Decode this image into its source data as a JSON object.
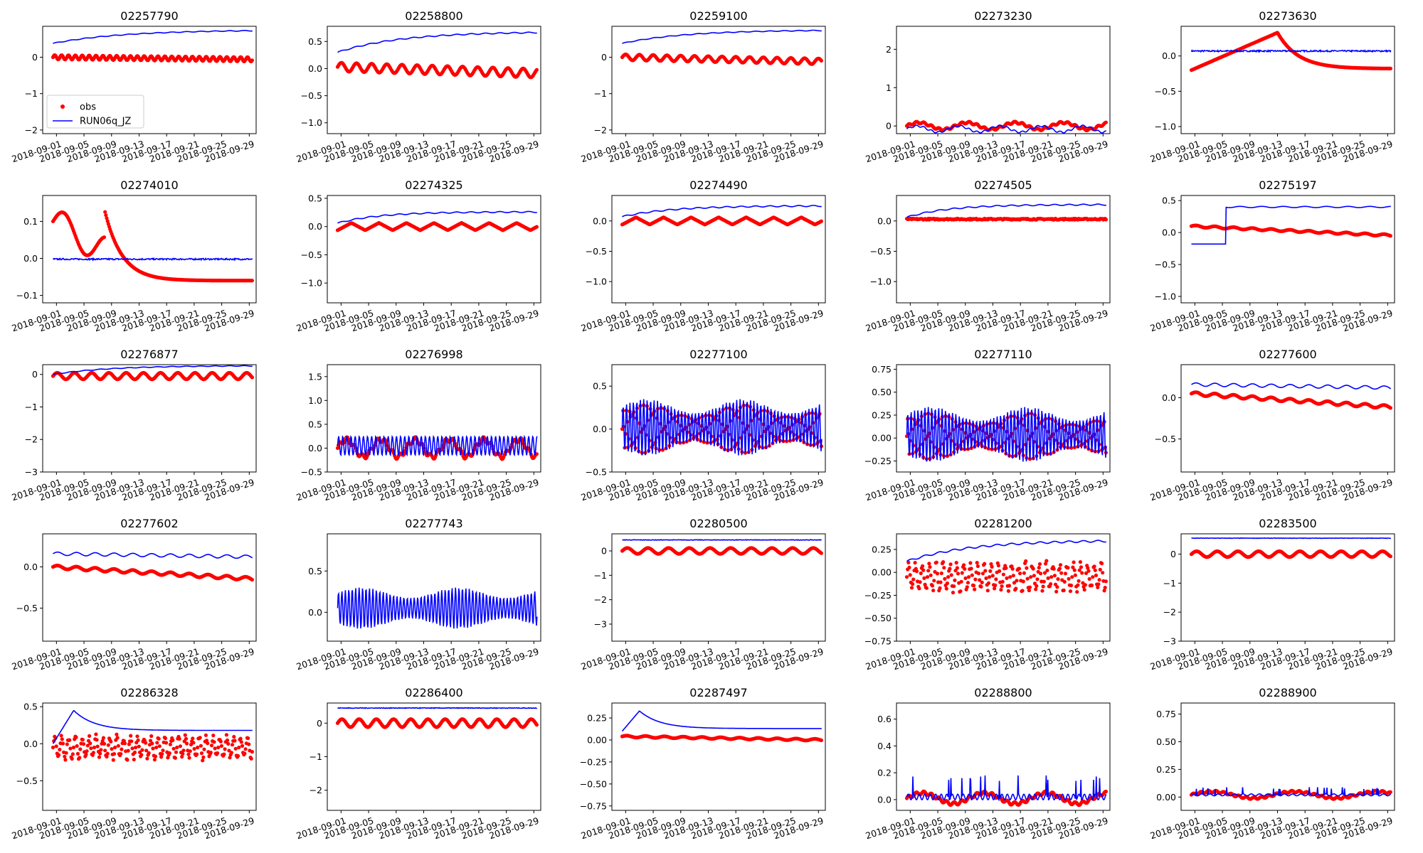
{
  "chart_data": {
    "type": "line",
    "layout": "5x5 grid of small-multiple time-series panels",
    "xlabel": "",
    "ylabel": "",
    "x_range": [
      "2018-08-30",
      "2018-09-30"
    ],
    "x_ticks": [
      "2018-09-01",
      "2018-09-05",
      "2018-09-09",
      "2018-09-13",
      "2018-09-17",
      "2018-09-21",
      "2018-09-25",
      "2018-09-29"
    ],
    "legend": {
      "placement": "lower-left of first panel",
      "entries": [
        {
          "name": "obs",
          "style": "red dots",
          "color": "#ff0000"
        },
        {
          "name": "RUN06q_JZ",
          "style": "blue line",
          "color": "#0000ff"
        }
      ]
    },
    "panels": [
      {
        "title": "02257790",
        "ylim": [
          -2.1,
          0.85
        ],
        "yticks": [
          "0",
          "−1",
          "−2"
        ],
        "ytick_values": [
          0,
          -1,
          -2
        ],
        "obs": {
          "kind": "osc",
          "base": 0.0,
          "amp": 0.06,
          "period": 1.0,
          "trend": -0.002
        },
        "model": {
          "kind": "rise",
          "start": 0.38,
          "end": 0.75,
          "tau": 10
        }
      },
      {
        "title": "02258800",
        "ylim": [
          -1.2,
          0.78
        ],
        "yticks": [
          "0.5",
          "0.0",
          "−0.5",
          "−1.0"
        ],
        "ytick_values": [
          0.5,
          0,
          -0.5,
          -1.0
        ],
        "obs": {
          "kind": "osc",
          "base": 0.03,
          "amp": 0.08,
          "period": 2.2,
          "trend": -0.004
        },
        "model": {
          "kind": "rise",
          "start": 0.3,
          "end": 0.68,
          "tau": 9
        }
      },
      {
        "title": "02259100",
        "ylim": [
          -2.1,
          0.85
        ],
        "yticks": [
          "0",
          "−1",
          "−2"
        ],
        "ytick_values": [
          0,
          -1,
          -2
        ],
        "obs": {
          "kind": "osc",
          "base": 0.0,
          "amp": 0.08,
          "period": 2.0,
          "trend": -0.004
        },
        "model": {
          "kind": "rise",
          "start": 0.38,
          "end": 0.75,
          "tau": 9
        }
      },
      {
        "title": "02273230",
        "ylim": [
          -0.2,
          2.6
        ],
        "yticks": [
          "2",
          "1",
          "0"
        ],
        "ytick_values": [
          2,
          1,
          0
        ],
        "obs": {
          "kind": "wave",
          "base": 0.0,
          "amp": 0.09,
          "period": 7.0,
          "trend": 0.0
        },
        "model": {
          "kind": "wave",
          "base": -0.08,
          "amp": 0.08,
          "period": 6.0,
          "trend": 0.0
        }
      },
      {
        "title": "02273630",
        "ylim": [
          -1.1,
          0.42
        ],
        "yticks": [
          "0.0",
          "−0.5",
          "−1.0"
        ],
        "ytick_values": [
          0,
          -0.5,
          -1.0
        ],
        "obs": {
          "kind": "peak",
          "base": -0.2,
          "peak": 0.33,
          "tpeak": 12.5,
          "end": -0.18
        },
        "model": {
          "kind": "flat",
          "base": 0.07,
          "noise": 0.02
        }
      },
      {
        "title": "02274010",
        "ylim": [
          -0.12,
          0.17
        ],
        "yticks": [
          "0.1",
          "0.0",
          "−0.1"
        ],
        "ytick_values": [
          0.1,
          0,
          -0.1
        ],
        "obs": {
          "kind": "recess",
          "base": 0.08,
          "peak": 0.13,
          "tpeak": 7.5,
          "end": -0.06
        },
        "model": {
          "kind": "flat",
          "base": -0.002,
          "noise": 0.004
        }
      },
      {
        "title": "02274325",
        "ylim": [
          -1.35,
          0.55
        ],
        "yticks": [
          "0.5",
          "0.0",
          "−0.5",
          "−1.0"
        ],
        "ytick_values": [
          0.5,
          0,
          -0.5,
          -1.0
        ],
        "obs": {
          "kind": "saw",
          "base": 0.0,
          "amp": 0.13,
          "period": 4.0,
          "trend": 0.0
        },
        "model": {
          "kind": "rise",
          "start": 0.06,
          "end": 0.26,
          "tau": 6
        }
      },
      {
        "title": "02274490",
        "ylim": [
          -1.35,
          0.42
        ],
        "yticks": [
          "0.0",
          "−0.5",
          "−1.0"
        ],
        "ytick_values": [
          0,
          -0.5,
          -1.0
        ],
        "obs": {
          "kind": "saw",
          "base": 0.0,
          "amp": 0.12,
          "period": 4.0,
          "trend": 0.0
        },
        "model": {
          "kind": "rise",
          "start": 0.07,
          "end": 0.25,
          "tau": 7
        }
      },
      {
        "title": "02274505",
        "ylim": [
          -1.35,
          0.42
        ],
        "yticks": [
          "0.0",
          "−0.5",
          "−1.0"
        ],
        "ytick_values": [
          0,
          -0.5,
          -1.0
        ],
        "obs": {
          "kind": "flat",
          "base": 0.03,
          "noise": 0.02
        },
        "model": {
          "kind": "rise",
          "start": 0.06,
          "end": 0.27,
          "tau": 6
        }
      },
      {
        "title": "02275197",
        "ylim": [
          -1.1,
          0.58
        ],
        "yticks": [
          "0.5",
          "0.0",
          "−0.5",
          "−1.0"
        ],
        "ytick_values": [
          0.5,
          0,
          -0.5,
          -1.0
        ],
        "obs": {
          "kind": "decay",
          "base": 0.1,
          "end": -0.05,
          "noise": 0.015
        },
        "model": {
          "kind": "step",
          "before": -0.18,
          "after": 0.4,
          "tstep": 5
        }
      },
      {
        "title": "02276877",
        "ylim": [
          -3.0,
          0.3
        ],
        "yticks": [
          "0",
          "−1",
          "−2",
          "−3"
        ],
        "ytick_values": [
          0,
          -1,
          -2,
          -3
        ],
        "obs": {
          "kind": "osc",
          "base": -0.05,
          "amp": 0.1,
          "period": 2.5,
          "trend": 0.0
        },
        "model": {
          "kind": "rise",
          "start": 0.0,
          "end": 0.27,
          "tau": 8
        }
      },
      {
        "title": "02276998",
        "ylim": [
          -0.5,
          1.75
        ],
        "yticks": [
          "1.5",
          "1.0",
          "0.5",
          "0.0",
          "−0.5"
        ],
        "ytick_values": [
          1.5,
          1.0,
          0.5,
          0,
          -0.5
        ],
        "obs": {
          "kind": "wave",
          "base": 0.0,
          "amp": 0.18,
          "period": 5.0,
          "trend": 0.0
        },
        "model": {
          "kind": "osc",
          "base": 0.05,
          "amp": 0.2,
          "period": 0.6,
          "trend": 0.0
        }
      },
      {
        "title": "02277100",
        "ylim": [
          -0.5,
          0.75
        ],
        "yticks": [
          "0.5",
          "0.0",
          "−0.5"
        ],
        "ytick_values": [
          0.5,
          0,
          -0.5
        ],
        "obs": {
          "kind": "tide",
          "base": 0.0,
          "amp": 0.28,
          "period": 0.5,
          "trend": 0.0
        },
        "model": {
          "kind": "tide",
          "base": 0.02,
          "amp": 0.33,
          "period": 0.5,
          "trend": 0.0
        }
      },
      {
        "title": "02277110",
        "ylim": [
          -0.37,
          0.8
        ],
        "yticks": [
          "0.75",
          "0.50",
          "0.25",
          "0.00",
          "−0.25"
        ],
        "ytick_values": [
          0.75,
          0.5,
          0.25,
          0,
          -0.25
        ],
        "obs": {
          "kind": "tide",
          "base": 0.02,
          "amp": 0.25,
          "period": 0.5,
          "trend": 0.0
        },
        "model": {
          "kind": "tide",
          "base": 0.04,
          "amp": 0.3,
          "period": 0.5,
          "trend": 0.0
        }
      },
      {
        "title": "02277600",
        "ylim": [
          -0.9,
          0.4
        ],
        "yticks": [
          "0.0",
          "−0.5"
        ],
        "ytick_values": [
          0,
          -0.5
        ],
        "obs": {
          "kind": "decay",
          "base": 0.05,
          "end": -0.12,
          "noise": 0.02
        },
        "model": {
          "kind": "decay",
          "base": 0.16,
          "end": 0.12,
          "noise": 0.02
        }
      },
      {
        "title": "02277602",
        "ylim": [
          -0.9,
          0.4
        ],
        "yticks": [
          "0.0",
          "−0.5"
        ],
        "ytick_values": [
          0,
          -0.5
        ],
        "obs": {
          "kind": "decay",
          "base": 0.0,
          "end": -0.15,
          "noise": 0.02
        },
        "model": {
          "kind": "decay",
          "base": 0.16,
          "end": 0.12,
          "noise": 0.02
        }
      },
      {
        "title": "02277743",
        "ylim": [
          -0.35,
          0.95
        ],
        "yticks": [
          "0.5",
          "0.0"
        ],
        "ytick_values": [
          0.5,
          0
        ],
        "obs": {
          "kind": "none"
        },
        "model": {
          "kind": "tide",
          "base": 0.05,
          "amp": 0.25,
          "period": 0.5,
          "trend": 0.0
        }
      },
      {
        "title": "02280500",
        "ylim": [
          -3.7,
          0.7
        ],
        "yticks": [
          "0",
          "−1",
          "−2",
          "−3"
        ],
        "ytick_values": [
          0,
          -1,
          -2,
          -3
        ],
        "obs": {
          "kind": "osc",
          "base": 0.0,
          "amp": 0.12,
          "period": 3.0,
          "trend": 0.0
        },
        "model": {
          "kind": "flat",
          "base": 0.45,
          "noise": 0.02
        }
      },
      {
        "title": "02281200",
        "ylim": [
          -0.75,
          0.42
        ],
        "yticks": [
          "0.25",
          "0.00",
          "−0.25",
          "−0.50",
          "−0.75"
        ],
        "ytick_values": [
          0.25,
          0,
          -0.25,
          -0.5,
          -0.75
        ],
        "obs": {
          "kind": "band",
          "base": -0.05,
          "amp": 0.18,
          "period": 1.0,
          "trend": 0.0
        },
        "model": {
          "kind": "rise",
          "start": 0.12,
          "end": 0.35,
          "tau": 9
        }
      },
      {
        "title": "02283500",
        "ylim": [
          -3.0,
          0.7
        ],
        "yticks": [
          "0",
          "−1",
          "−2",
          "−3"
        ],
        "ytick_values": [
          0,
          -1,
          -2,
          -3
        ],
        "obs": {
          "kind": "osc",
          "base": 0.0,
          "amp": 0.1,
          "period": 3.0,
          "trend": 0.0
        },
        "model": {
          "kind": "flat",
          "base": 0.55,
          "noise": 0.015
        }
      },
      {
        "title": "02286328",
        "ylim": [
          -0.9,
          0.55
        ],
        "yticks": [
          "0.5",
          "0.0",
          "−0.5"
        ],
        "ytick_values": [
          0.5,
          0,
          -0.5
        ],
        "obs": {
          "kind": "band",
          "base": -0.05,
          "amp": 0.18,
          "period": 1.0,
          "trend": 0.005
        },
        "model": {
          "kind": "peak",
          "base": 0.0,
          "peak": 0.45,
          "tpeak": 3.0,
          "end": 0.18
        }
      },
      {
        "title": "02286400",
        "ylim": [
          -2.6,
          0.6
        ],
        "yticks": [
          "0",
          "−1",
          "−2"
        ],
        "ytick_values": [
          0,
          -1,
          -2
        ],
        "obs": {
          "kind": "osc",
          "base": 0.0,
          "amp": 0.12,
          "period": 2.5,
          "trend": 0.0
        },
        "model": {
          "kind": "flat",
          "base": 0.45,
          "noise": 0.02
        }
      },
      {
        "title": "02287497",
        "ylim": [
          -0.8,
          0.42
        ],
        "yticks": [
          "0.25",
          "0.00",
          "−0.25",
          "−0.50",
          "−0.75"
        ],
        "ytick_values": [
          0.25,
          0,
          -0.25,
          -0.5,
          -0.75
        ],
        "obs": {
          "kind": "decay",
          "base": 0.04,
          "end": 0.0,
          "noise": 0.01
        },
        "model": {
          "kind": "peak",
          "base": 0.1,
          "peak": 0.33,
          "tpeak": 2.5,
          "end": 0.13
        }
      },
      {
        "title": "02288800",
        "ylim": [
          -0.08,
          0.72
        ],
        "yticks": [
          "0.6",
          "0.4",
          "0.2",
          "0.0"
        ],
        "ytick_values": [
          0.6,
          0.4,
          0.2,
          0
        ],
        "obs": {
          "kind": "wave",
          "base": 0.01,
          "amp": 0.04,
          "period": 9.0,
          "trend": 0.0
        },
        "model": {
          "kind": "spiky",
          "base": 0.02,
          "amp": 0.07,
          "period": 0.8,
          "trend": 0.0
        }
      },
      {
        "title": "02288900",
        "ylim": [
          -0.12,
          0.85
        ],
        "yticks": [
          "0.75",
          "0.50",
          "0.25",
          "0.00"
        ],
        "ytick_values": [
          0.75,
          0.5,
          0.25,
          0
        ],
        "obs": {
          "kind": "wave",
          "base": 0.02,
          "amp": 0.03,
          "period": 12.0,
          "trend": 0.0
        },
        "model": {
          "kind": "spiky",
          "base": 0.02,
          "amp": 0.03,
          "period": 1.2,
          "trend": 0.0
        }
      }
    ]
  }
}
